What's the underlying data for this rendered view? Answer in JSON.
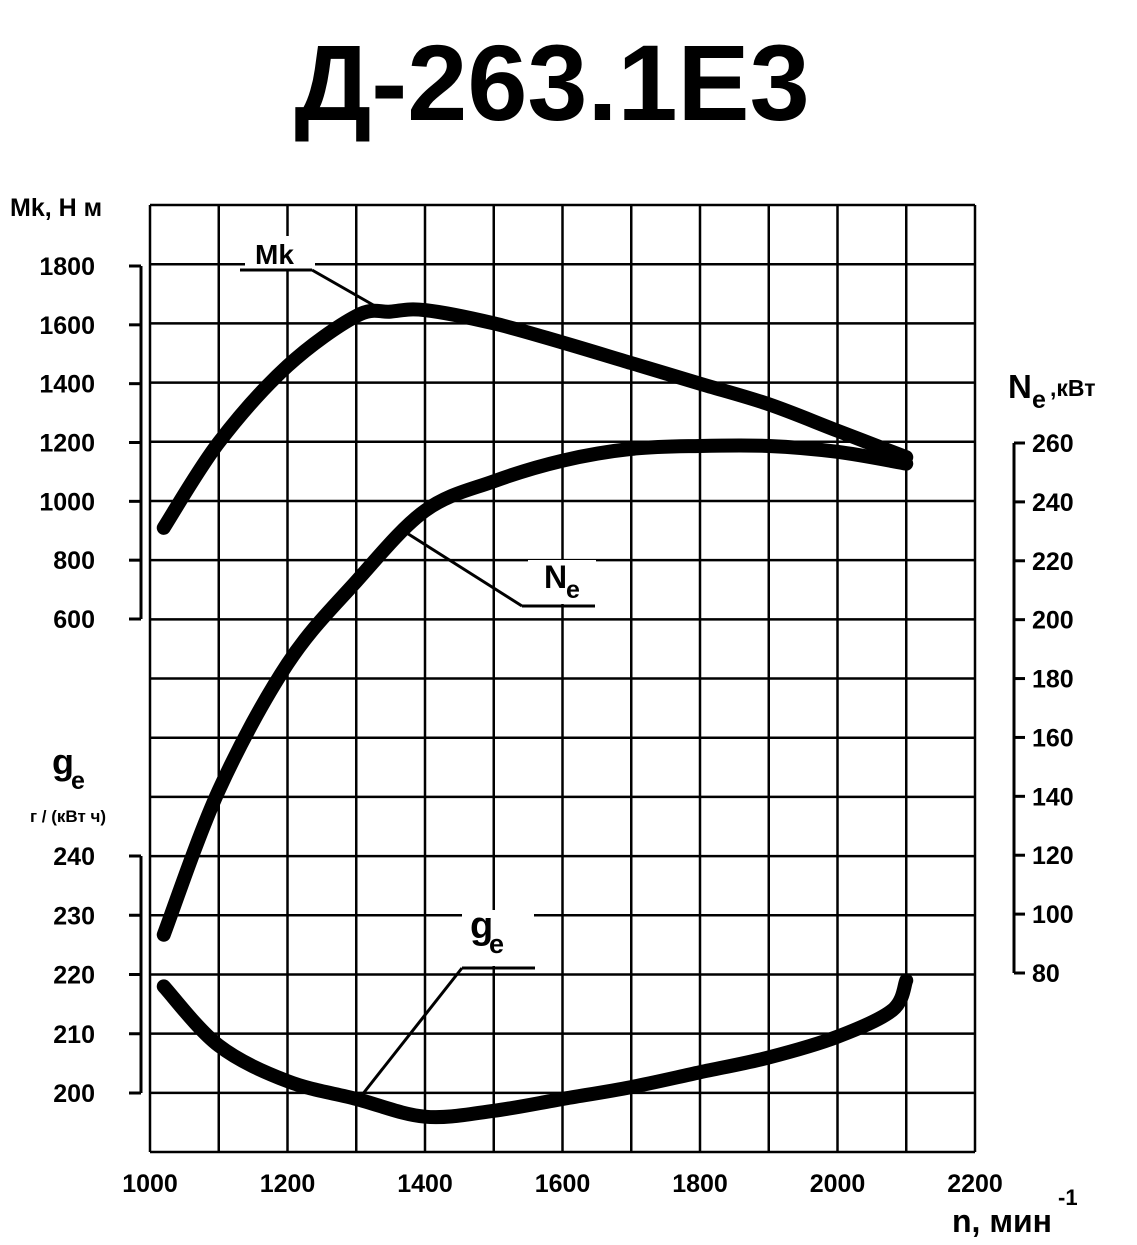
{
  "title": "Д-263.1Е3",
  "chart_data": {
    "type": "line",
    "x_axis": {
      "label": "n, мин",
      "label_sup": "-1",
      "ticks": [
        1000,
        1200,
        1400,
        1600,
        1800,
        2000,
        2200
      ],
      "range": [
        1000,
        2200
      ]
    },
    "y_axes": {
      "mk": {
        "label": "Mk, Н м",
        "ticks": [
          600,
          800,
          1000,
          1200,
          1400,
          1600,
          1800
        ],
        "range": [
          600,
          1800
        ]
      },
      "ne": {
        "label": "N",
        "label_sub": "e",
        "label_unit": " ,кВт",
        "ticks": [
          80,
          100,
          120,
          140,
          160,
          180,
          200,
          220,
          240,
          260
        ],
        "range": [
          80,
          260
        ]
      },
      "ge": {
        "label": "g",
        "label_sub": "e",
        "unit_label": "г / (кВт ч)",
        "ticks": [
          200,
          210,
          220,
          230,
          240
        ],
        "range": [
          200,
          240
        ]
      }
    },
    "grid": true,
    "series": [
      {
        "name": "Mk",
        "axis": "mk",
        "points": [
          [
            1020,
            910
          ],
          [
            1100,
            1200
          ],
          [
            1200,
            1460
          ],
          [
            1300,
            1630
          ],
          [
            1350,
            1645
          ],
          [
            1400,
            1650
          ],
          [
            1500,
            1605
          ],
          [
            1600,
            1540
          ],
          [
            1700,
            1470
          ],
          [
            1800,
            1400
          ],
          [
            1900,
            1330
          ],
          [
            2000,
            1240
          ],
          [
            2100,
            1150
          ]
        ]
      },
      {
        "name": "N",
        "name_sub": "e",
        "axis": "ne",
        "points": [
          [
            1020,
            93
          ],
          [
            1100,
            142
          ],
          [
            1200,
            185
          ],
          [
            1300,
            213
          ],
          [
            1400,
            237
          ],
          [
            1500,
            247
          ],
          [
            1600,
            254
          ],
          [
            1700,
            258
          ],
          [
            1800,
            259
          ],
          [
            1900,
            259
          ],
          [
            2000,
            257
          ],
          [
            2100,
            253
          ]
        ]
      },
      {
        "name": "g",
        "name_sub": "e",
        "axis": "ge",
        "points": [
          [
            1020,
            218
          ],
          [
            1100,
            208
          ],
          [
            1200,
            202
          ],
          [
            1300,
            199
          ],
          [
            1400,
            196
          ],
          [
            1500,
            197
          ],
          [
            1600,
            199
          ],
          [
            1700,
            201
          ],
          [
            1800,
            203.5
          ],
          [
            1900,
            206
          ],
          [
            2000,
            209.5
          ],
          [
            2080,
            214
          ],
          [
            2100,
            219
          ]
        ]
      }
    ]
  }
}
